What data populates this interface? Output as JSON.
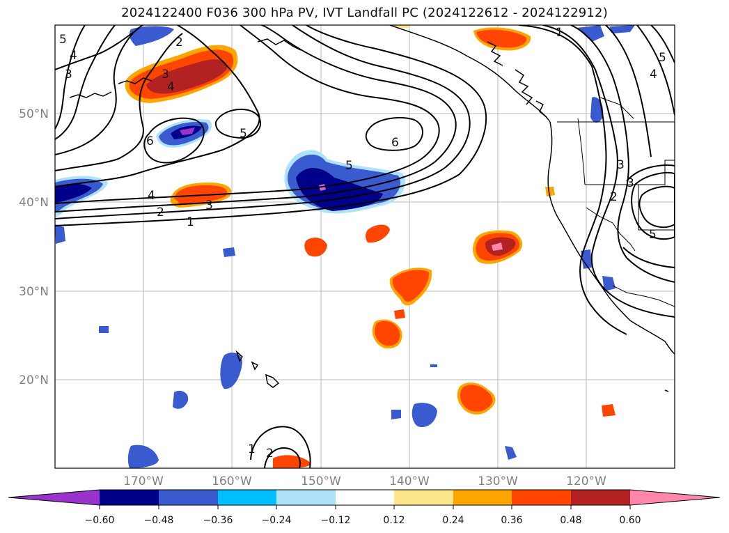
{
  "title": "2024122400 F036 300 hPa PV, IVT Landfall PC (2024122612 - 2024122912)",
  "map": {
    "lon_labels": [
      "170°W",
      "160°W",
      "150°W",
      "140°W",
      "130°W",
      "120°W"
    ],
    "lat_labels": [
      "50°N",
      "40°N",
      "30°N",
      "20°N"
    ]
  },
  "contour_labels": [
    "5",
    "4",
    "3",
    "2",
    "6",
    "5",
    "6",
    "5",
    "4",
    "3",
    "2",
    "1",
    "1",
    "5",
    "4",
    "3",
    "2",
    "5",
    "1",
    "2",
    "3",
    "3",
    "4"
  ],
  "colorbar": {
    "ticks": [
      "−0.60",
      "−0.48",
      "−0.36",
      "−0.24",
      "−0.12",
      "0.12",
      "0.24",
      "0.36",
      "0.48",
      "0.60"
    ],
    "colors": [
      "#9933cc",
      "#00008b",
      "#3a5bcf",
      "#00bfff",
      "#aee2fb",
      "#ffffff",
      "#fde68a",
      "#ffa500",
      "#ff4500",
      "#b22222",
      "#ff88aa"
    ]
  }
}
